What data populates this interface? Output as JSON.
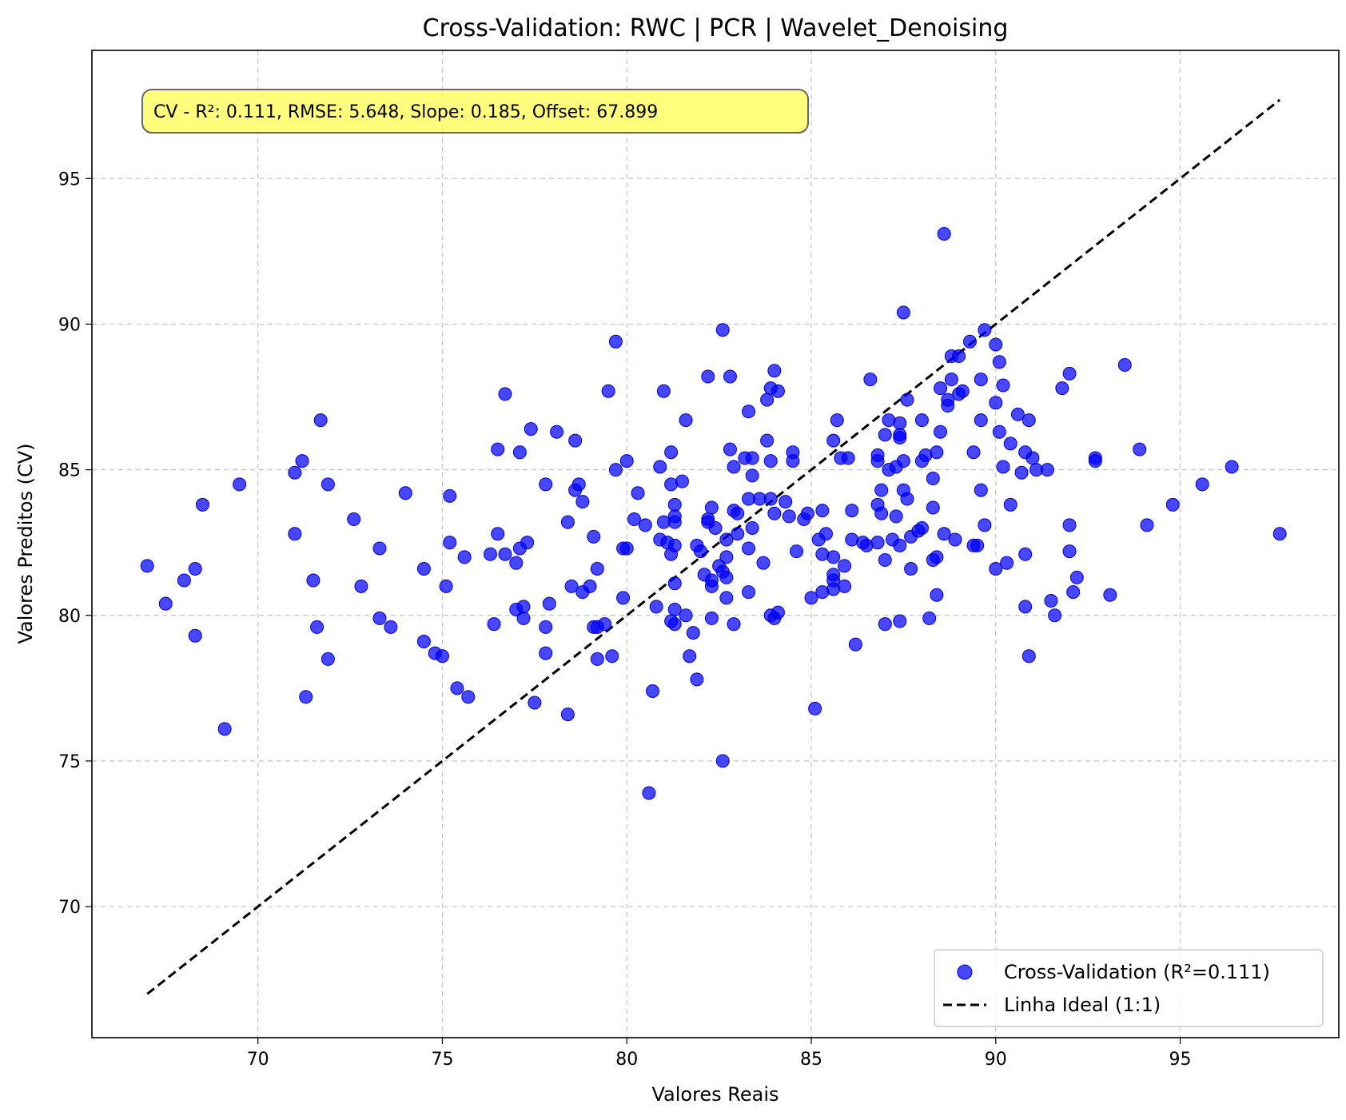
{
  "chart_data": {
    "type": "scatter",
    "title": "Cross-Validation: RWC | PCR | Wavelet_Denoising",
    "xlabel": "Valores Reais",
    "ylabel": "Valores Preditos (CV)",
    "xlim": [
      65.5,
      99.3
    ],
    "ylim": [
      65.5,
      99.4
    ],
    "xticks": [
      70,
      75,
      80,
      85,
      90,
      95
    ],
    "yticks": [
      70,
      75,
      80,
      85,
      90,
      95
    ],
    "grid": true,
    "legend_position": "bottom-right",
    "annotation": "CV - R²: 0.111, RMSE: 5.648, Slope: 0.185, Offset: 67.899",
    "colors": {
      "points": "#0000ff",
      "ideal_line": "#000000",
      "annotation_bg": "#ffff66"
    },
    "ideal_line": {
      "name": "Linha Ideal (1:1)",
      "from": [
        67.0,
        67.0
      ],
      "to": [
        97.7,
        97.7
      ]
    },
    "series": [
      {
        "name": "Cross-Validation (R²=0.111)",
        "points": [
          [
            67.0,
            81.7
          ],
          [
            67.5,
            80.4
          ],
          [
            68.0,
            81.2
          ],
          [
            68.3,
            81.6
          ],
          [
            68.3,
            79.3
          ],
          [
            68.5,
            83.8
          ],
          [
            69.1,
            76.1
          ],
          [
            69.5,
            84.5
          ],
          [
            71.0,
            84.9
          ],
          [
            71.0,
            82.8
          ],
          [
            71.2,
            85.3
          ],
          [
            71.3,
            77.2
          ],
          [
            71.5,
            81.2
          ],
          [
            71.6,
            79.6
          ],
          [
            71.7,
            86.7
          ],
          [
            71.9,
            84.5
          ],
          [
            71.9,
            78.5
          ],
          [
            72.6,
            83.3
          ],
          [
            72.8,
            81.0
          ],
          [
            73.3,
            82.3
          ],
          [
            73.3,
            79.9
          ],
          [
            73.6,
            79.6
          ],
          [
            74.0,
            84.2
          ],
          [
            74.5,
            81.6
          ],
          [
            74.5,
            79.1
          ],
          [
            74.8,
            78.7
          ],
          [
            75.0,
            78.6
          ],
          [
            75.1,
            81.0
          ],
          [
            75.2,
            84.1
          ],
          [
            75.2,
            82.5
          ],
          [
            75.4,
            77.5
          ],
          [
            75.6,
            82.0
          ],
          [
            75.7,
            77.2
          ],
          [
            76.3,
            82.1
          ],
          [
            76.4,
            79.7
          ],
          [
            76.5,
            85.7
          ],
          [
            76.5,
            82.8
          ],
          [
            76.7,
            87.6
          ],
          [
            76.7,
            82.1
          ],
          [
            77.0,
            80.2
          ],
          [
            77.0,
            81.8
          ],
          [
            77.1,
            82.3
          ],
          [
            77.1,
            85.6
          ],
          [
            77.2,
            80.3
          ],
          [
            77.2,
            79.9
          ],
          [
            77.3,
            82.5
          ],
          [
            77.4,
            86.4
          ],
          [
            77.5,
            77.0
          ],
          [
            77.8,
            84.5
          ],
          [
            77.8,
            79.6
          ],
          [
            77.8,
            78.7
          ],
          [
            77.9,
            80.4
          ],
          [
            78.1,
            86.3
          ],
          [
            78.4,
            83.2
          ],
          [
            78.4,
            76.6
          ],
          [
            78.5,
            81.0
          ],
          [
            78.6,
            86.0
          ],
          [
            78.6,
            84.3
          ],
          [
            78.7,
            84.5
          ],
          [
            78.8,
            80.8
          ],
          [
            78.8,
            83.9
          ],
          [
            79.0,
            81.0
          ],
          [
            79.1,
            79.6
          ],
          [
            79.1,
            82.7
          ],
          [
            79.2,
            81.6
          ],
          [
            79.2,
            78.5
          ],
          [
            79.2,
            79.6
          ],
          [
            79.4,
            79.7
          ],
          [
            79.5,
            87.7
          ],
          [
            79.6,
            78.6
          ],
          [
            79.7,
            89.4
          ],
          [
            79.7,
            85.0
          ],
          [
            79.9,
            82.3
          ],
          [
            79.9,
            80.6
          ],
          [
            80.0,
            85.3
          ],
          [
            80.0,
            82.3
          ],
          [
            80.2,
            83.3
          ],
          [
            80.3,
            84.2
          ],
          [
            80.5,
            83.1
          ],
          [
            80.6,
            73.9
          ],
          [
            80.7,
            77.4
          ],
          [
            80.8,
            80.3
          ],
          [
            80.9,
            85.1
          ],
          [
            80.9,
            82.6
          ],
          [
            81.0,
            83.2
          ],
          [
            81.0,
            87.7
          ],
          [
            81.1,
            82.5
          ],
          [
            81.2,
            85.6
          ],
          [
            81.2,
            84.5
          ],
          [
            81.2,
            79.8
          ],
          [
            81.2,
            82.1
          ],
          [
            81.3,
            83.8
          ],
          [
            81.3,
            81.1
          ],
          [
            81.3,
            79.7
          ],
          [
            81.3,
            83.2
          ],
          [
            81.3,
            83.4
          ],
          [
            81.3,
            82.4
          ],
          [
            81.3,
            80.2
          ],
          [
            81.5,
            84.6
          ],
          [
            81.6,
            86.7
          ],
          [
            81.6,
            80.0
          ],
          [
            81.7,
            78.6
          ],
          [
            81.8,
            79.4
          ],
          [
            81.9,
            77.8
          ],
          [
            81.9,
            82.4
          ],
          [
            82.0,
            82.2
          ],
          [
            82.1,
            81.4
          ],
          [
            82.2,
            88.2
          ],
          [
            82.2,
            83.3
          ],
          [
            82.2,
            83.2
          ],
          [
            82.3,
            83.7
          ],
          [
            82.3,
            81.0
          ],
          [
            82.3,
            81.2
          ],
          [
            82.3,
            79.9
          ],
          [
            82.4,
            83.0
          ],
          [
            82.5,
            81.7
          ],
          [
            82.6,
            89.8
          ],
          [
            82.6,
            81.5
          ],
          [
            82.6,
            75.0
          ],
          [
            82.7,
            82.0
          ],
          [
            82.7,
            81.3
          ],
          [
            82.7,
            80.6
          ],
          [
            82.7,
            82.6
          ],
          [
            82.8,
            85.7
          ],
          [
            82.8,
            88.2
          ],
          [
            82.9,
            85.1
          ],
          [
            82.9,
            83.6
          ],
          [
            82.9,
            79.7
          ],
          [
            83.0,
            83.5
          ],
          [
            83.0,
            82.8
          ],
          [
            83.2,
            85.4
          ],
          [
            83.3,
            84.0
          ],
          [
            83.3,
            82.3
          ],
          [
            83.3,
            87.0
          ],
          [
            83.3,
            80.8
          ],
          [
            83.4,
            85.4
          ],
          [
            83.4,
            84.8
          ],
          [
            83.4,
            83.0
          ],
          [
            83.6,
            84.0
          ],
          [
            83.7,
            81.8
          ],
          [
            83.8,
            87.4
          ],
          [
            83.8,
            86.0
          ],
          [
            83.9,
            85.3
          ],
          [
            83.9,
            80.0
          ],
          [
            83.9,
            84.0
          ],
          [
            83.9,
            87.8
          ],
          [
            84.0,
            88.4
          ],
          [
            84.0,
            83.5
          ],
          [
            84.0,
            79.9
          ],
          [
            84.1,
            80.1
          ],
          [
            84.1,
            87.7
          ],
          [
            84.3,
            83.9
          ],
          [
            84.4,
            83.4
          ],
          [
            84.5,
            85.6
          ],
          [
            84.5,
            85.3
          ],
          [
            84.6,
            82.2
          ],
          [
            84.8,
            83.3
          ],
          [
            84.9,
            83.5
          ],
          [
            85.0,
            80.6
          ],
          [
            85.1,
            76.8
          ],
          [
            85.2,
            82.6
          ],
          [
            85.3,
            83.6
          ],
          [
            85.3,
            80.8
          ],
          [
            85.3,
            82.1
          ],
          [
            85.4,
            82.8
          ],
          [
            85.6,
            86.0
          ],
          [
            85.6,
            82.0
          ],
          [
            85.6,
            81.4
          ],
          [
            85.6,
            81.2
          ],
          [
            85.6,
            80.9
          ],
          [
            85.7,
            86.7
          ],
          [
            85.8,
            85.4
          ],
          [
            85.9,
            81.0
          ],
          [
            85.9,
            81.7
          ],
          [
            86.0,
            85.4
          ],
          [
            86.1,
            83.6
          ],
          [
            86.1,
            82.6
          ],
          [
            86.2,
            79.0
          ],
          [
            86.4,
            82.5
          ],
          [
            86.5,
            82.4
          ],
          [
            86.6,
            88.1
          ],
          [
            86.8,
            85.3
          ],
          [
            86.8,
            85.5
          ],
          [
            86.8,
            83.8
          ],
          [
            86.8,
            82.5
          ],
          [
            86.9,
            84.3
          ],
          [
            86.9,
            83.5
          ],
          [
            87.0,
            81.9
          ],
          [
            87.0,
            79.7
          ],
          [
            87.0,
            86.2
          ],
          [
            87.1,
            85.0
          ],
          [
            87.1,
            86.7
          ],
          [
            87.2,
            82.6
          ],
          [
            87.3,
            83.4
          ],
          [
            87.3,
            85.1
          ],
          [
            87.4,
            86.1
          ],
          [
            87.4,
            86.6
          ],
          [
            87.4,
            79.8
          ],
          [
            87.4,
            82.4
          ],
          [
            87.4,
            86.2
          ],
          [
            87.5,
            90.4
          ],
          [
            87.5,
            85.3
          ],
          [
            87.5,
            84.3
          ],
          [
            87.6,
            87.4
          ],
          [
            87.6,
            84.0
          ],
          [
            87.7,
            81.6
          ],
          [
            87.7,
            82.7
          ],
          [
            87.9,
            82.9
          ],
          [
            88.0,
            83.0
          ],
          [
            88.0,
            86.7
          ],
          [
            88.0,
            85.3
          ],
          [
            88.1,
            85.5
          ],
          [
            88.2,
            79.9
          ],
          [
            88.3,
            84.7
          ],
          [
            88.3,
            83.7
          ],
          [
            88.3,
            81.9
          ],
          [
            88.4,
            82.0
          ],
          [
            88.4,
            80.7
          ],
          [
            88.4,
            85.6
          ],
          [
            88.5,
            87.8
          ],
          [
            88.5,
            86.3
          ],
          [
            88.6,
            93.1
          ],
          [
            88.6,
            82.8
          ],
          [
            88.7,
            87.4
          ],
          [
            88.7,
            87.2
          ],
          [
            88.8,
            88.9
          ],
          [
            88.8,
            88.1
          ],
          [
            88.9,
            82.6
          ],
          [
            89.0,
            88.9
          ],
          [
            89.0,
            87.6
          ],
          [
            89.1,
            87.7
          ],
          [
            89.3,
            89.4
          ],
          [
            89.4,
            82.4
          ],
          [
            89.4,
            85.6
          ],
          [
            89.5,
            82.4
          ],
          [
            89.6,
            88.1
          ],
          [
            89.6,
            86.7
          ],
          [
            89.6,
            84.3
          ],
          [
            89.7,
            83.1
          ],
          [
            89.7,
            89.8
          ],
          [
            90.0,
            89.3
          ],
          [
            90.0,
            87.3
          ],
          [
            90.0,
            81.6
          ],
          [
            90.1,
            88.7
          ],
          [
            90.1,
            86.3
          ],
          [
            90.2,
            87.9
          ],
          [
            90.2,
            85.1
          ],
          [
            90.3,
            81.8
          ],
          [
            90.4,
            83.8
          ],
          [
            90.4,
            85.9
          ],
          [
            90.6,
            86.9
          ],
          [
            90.7,
            84.9
          ],
          [
            90.8,
            82.1
          ],
          [
            90.8,
            80.3
          ],
          [
            90.8,
            85.6
          ],
          [
            90.9,
            78.6
          ],
          [
            90.9,
            86.7
          ],
          [
            91.0,
            85.4
          ],
          [
            91.1,
            85.0
          ],
          [
            91.4,
            85.0
          ],
          [
            91.5,
            80.5
          ],
          [
            91.6,
            80.0
          ],
          [
            91.8,
            87.8
          ],
          [
            92.0,
            88.3
          ],
          [
            92.0,
            82.2
          ],
          [
            92.0,
            83.1
          ],
          [
            92.1,
            80.8
          ],
          [
            92.2,
            81.3
          ],
          [
            92.7,
            85.4
          ],
          [
            92.7,
            85.3
          ],
          [
            93.1,
            80.7
          ],
          [
            93.5,
            88.6
          ],
          [
            93.9,
            85.7
          ],
          [
            94.1,
            83.1
          ],
          [
            94.8,
            83.8
          ],
          [
            95.6,
            84.5
          ],
          [
            96.4,
            85.1
          ],
          [
            97.7,
            82.8
          ]
        ]
      }
    ]
  }
}
